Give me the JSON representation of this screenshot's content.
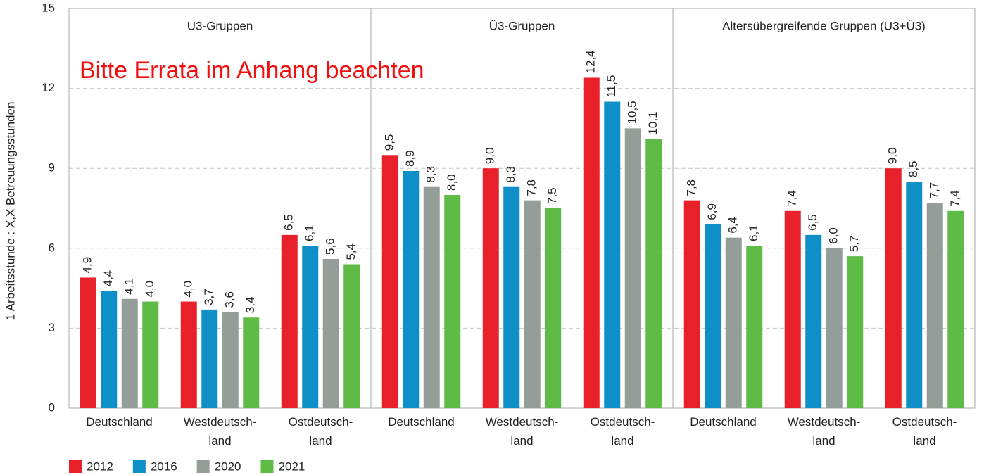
{
  "chart_data": {
    "type": "bar",
    "y_label": "1 Arbeitsstunde : X,X  Betreuungsstunden",
    "annotation": "Bitte Errata im Anhang beachten",
    "groups": [
      "U3-Gruppen",
      "Ü3-Gruppen",
      "Altersübergreifende Gruppen (U3+Ü3)"
    ],
    "categories": [
      "Deutschland",
      "Westdeutsch-\nland",
      "Ostdeutsch-\nland",
      "Deutschland",
      "Westdeutsch-\nland",
      "Ostdeutsch-\nland",
      "Deutschland",
      "Westdeutsch-\nland",
      "Ostdeutsch-\nland"
    ],
    "series": [
      {
        "name": "2012",
        "color": "#e8202a",
        "values": [
          4.9,
          4.0,
          6.5,
          9.5,
          9.0,
          12.4,
          7.8,
          7.4,
          9.0
        ],
        "value_labels": [
          "4,9",
          "4,0",
          "6,5",
          "9,5",
          "9,0",
          "12,4",
          "7,8",
          "7,4",
          "9,0"
        ]
      },
      {
        "name": "2016",
        "color": "#0e8fc8",
        "values": [
          4.4,
          3.7,
          6.1,
          8.9,
          8.3,
          11.5,
          6.9,
          6.5,
          8.5
        ],
        "value_labels": [
          "4,4",
          "3,7",
          "6,1",
          "8,9",
          "8,3",
          "11,5",
          "6,9",
          "6,5",
          "8,5"
        ]
      },
      {
        "name": "2020",
        "color": "#959d99",
        "values": [
          4.1,
          3.6,
          5.6,
          8.3,
          7.8,
          10.5,
          6.4,
          6.0,
          7.7
        ],
        "value_labels": [
          "4,1",
          "3,6",
          "5,6",
          "8,3",
          "7,8",
          "10,5",
          "6,4",
          "6,0",
          "7,7"
        ]
      },
      {
        "name": "2021",
        "color": "#5dbb46",
        "values": [
          4.0,
          3.4,
          5.4,
          8.0,
          7.5,
          10.1,
          6.1,
          5.7,
          7.4
        ],
        "value_labels": [
          "4,0",
          "3,4",
          "5,4",
          "8,0",
          "7,5",
          "10,1",
          "6,1",
          "5,7",
          "7,4"
        ]
      }
    ],
    "ylim": [
      0,
      15
    ],
    "yticks": [
      0,
      3,
      6,
      9,
      12,
      15
    ],
    "grid": true,
    "legend": "bottom-left"
  }
}
